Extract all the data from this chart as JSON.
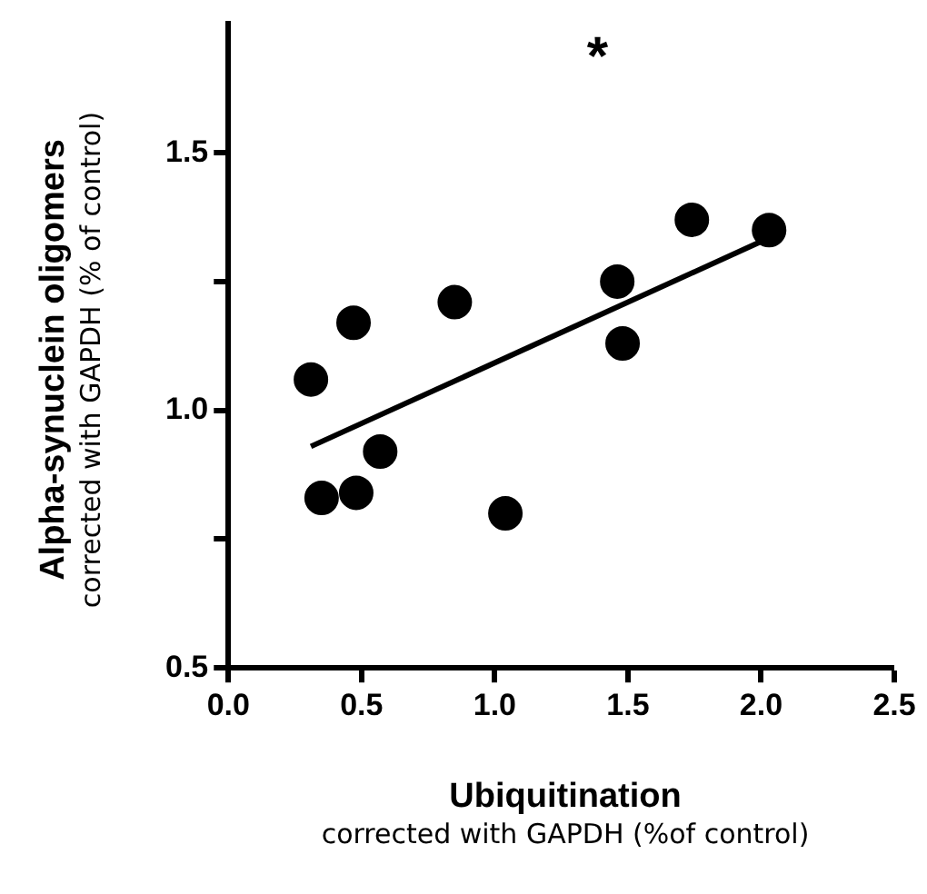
{
  "chart_data": {
    "type": "scatter",
    "xlabel": "Ubiquitination\ncorrected with GAPDH (%of control)",
    "ylabel": "Alpha-synuclein oligomers\ncorrected with GAPDH (% of control)",
    "annotations": [
      "*"
    ],
    "series": [
      {
        "color": "#000000",
        "marker": "circle",
        "x": [
          0.31,
          0.35,
          0.47,
          0.48,
          0.57,
          0.85,
          1.04,
          1.46,
          1.48,
          1.74,
          2.03
        ],
        "values": [
          1.06,
          0.83,
          1.17,
          0.84,
          0.92,
          1.21,
          0.8,
          1.25,
          1.13,
          1.37,
          1.35
        ]
      },
      {
        "type": "line",
        "color": "#000000",
        "line_style": "solid",
        "x": [
          0.31,
          2.01
        ],
        "values": [
          0.93,
          1.33
        ]
      }
    ],
    "xlim": [
      0,
      2.5
    ],
    "ylim": [
      0.5,
      1.75
    ],
    "xticks": [
      {
        "value": 0,
        "label": "0.0"
      },
      {
        "value": 0.5,
        "label": "0.5"
      },
      {
        "value": 1,
        "label": "1.0"
      },
      {
        "value": 1.5,
        "label": "1.5"
      },
      {
        "value": 2,
        "label": "2.0"
      },
      {
        "value": 2.5,
        "label": "2.5"
      }
    ],
    "yticks": [
      {
        "value": 0.5,
        "label": "0.5"
      },
      {
        "value": 0.75,
        "label": null
      },
      {
        "value": 1,
        "label": "1.0"
      },
      {
        "value": 1.25,
        "label": null
      },
      {
        "value": 1.5,
        "label": "1.5"
      }
    ],
    "grid": false,
    "legend": false
  }
}
